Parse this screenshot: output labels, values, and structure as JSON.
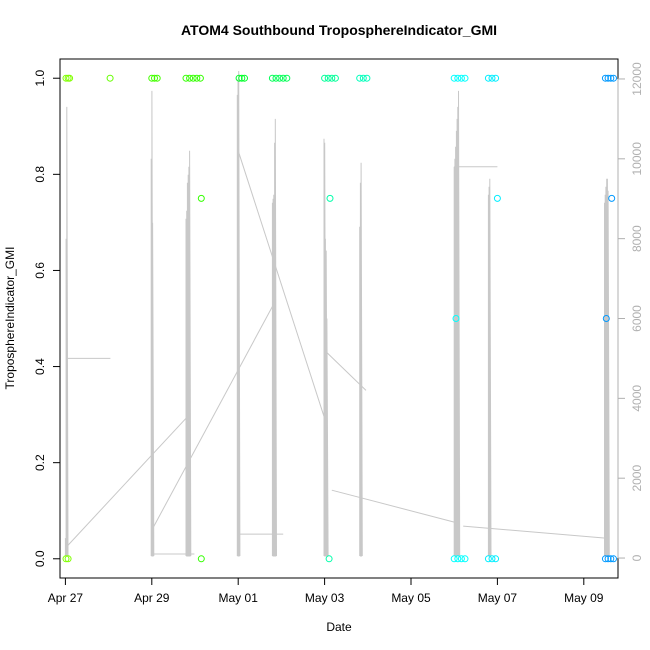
{
  "chart_data": {
    "type": "scatter",
    "title": "ATOM4 Southbound TroposphereIndicator_GMI",
    "xlabel": "Date",
    "ylabel": "TroposphereIndicator_GMI",
    "x_axis": {
      "type": "date",
      "range": [
        "2023-04-26T21:00",
        "2023-05-09T19:00"
      ],
      "ticks": [
        {
          "value": "2023-04-27",
          "label": "Apr 27"
        },
        {
          "value": "2023-04-29",
          "label": "Apr 29"
        },
        {
          "value": "2023-05-01",
          "label": "May 01"
        },
        {
          "value": "2023-05-03",
          "label": "May 03"
        },
        {
          "value": "2023-05-05",
          "label": "May 05"
        },
        {
          "value": "2023-05-07",
          "label": "May 07"
        },
        {
          "value": "2023-05-09",
          "label": "May 09"
        }
      ]
    },
    "y_axis_left": {
      "range": [
        -0.04,
        1.04
      ],
      "ticks": [
        {
          "value": 0.0,
          "label": "0.0"
        },
        {
          "value": 0.2,
          "label": "0.2"
        },
        {
          "value": 0.4,
          "label": "0.4"
        },
        {
          "value": 0.6,
          "label": "0.6"
        },
        {
          "value": 0.8,
          "label": "0.8"
        },
        {
          "value": 1.0,
          "label": "1.0"
        }
      ]
    },
    "y_axis_right": {
      "range": [
        -500,
        12500
      ],
      "color": "#b0b0b0",
      "ticks": [
        {
          "value": 0,
          "label": "0"
        },
        {
          "value": 2000,
          "label": "2000"
        },
        {
          "value": 4000,
          "label": "4000"
        },
        {
          "value": 6000,
          "label": "6000"
        },
        {
          "value": 8000,
          "label": "8000"
        },
        {
          "value": 10000,
          "label": "10000"
        },
        {
          "value": 12000,
          "label": "12000"
        }
      ]
    },
    "grid": false,
    "indicator_series": {
      "marker": "open-circle",
      "color_scale": "green-to-blue by time",
      "points": [
        {
          "x": "2023-04-27T00:20",
          "y": 1.0,
          "color": "#80ff00"
        },
        {
          "x": "2023-04-27T01:30",
          "y": 1.0,
          "color": "#80ff00"
        },
        {
          "x": "2023-04-27T02:20",
          "y": 1.0,
          "color": "#80ff00"
        },
        {
          "x": "2023-04-27T00:20",
          "y": 0.0,
          "color": "#80ff00"
        },
        {
          "x": "2023-04-27T01:30",
          "y": 0.0,
          "color": "#80ff00"
        },
        {
          "x": "2023-04-28T00:50",
          "y": 1.0,
          "color": "#66ff00"
        },
        {
          "x": "2023-04-29T00:00",
          "y": 1.0,
          "color": "#44ff00"
        },
        {
          "x": "2023-04-29T01:30",
          "y": 1.0,
          "color": "#44ff00"
        },
        {
          "x": "2023-04-29T03:00",
          "y": 1.0,
          "color": "#44ff00"
        },
        {
          "x": "2023-04-29T19:00",
          "y": 1.0,
          "color": "#33ff00"
        },
        {
          "x": "2023-04-29T21:00",
          "y": 1.0,
          "color": "#33ff00"
        },
        {
          "x": "2023-04-29T23:00",
          "y": 1.0,
          "color": "#33ff00"
        },
        {
          "x": "2023-04-30T01:00",
          "y": 1.0,
          "color": "#33ff00"
        },
        {
          "x": "2023-04-30T03:00",
          "y": 1.0,
          "color": "#33ff00"
        },
        {
          "x": "2023-04-30T03:30",
          "y": 0.75,
          "color": "#33ff00"
        },
        {
          "x": "2023-04-30T03:30",
          "y": 0.0,
          "color": "#33ff00"
        },
        {
          "x": "2023-05-01T00:30",
          "y": 1.0,
          "color": "#00ff2a"
        },
        {
          "x": "2023-05-01T02:00",
          "y": 1.0,
          "color": "#00ff2a"
        },
        {
          "x": "2023-05-01T03:30",
          "y": 1.0,
          "color": "#00ff2a"
        },
        {
          "x": "2023-05-01T19:00",
          "y": 1.0,
          "color": "#00ff55"
        },
        {
          "x": "2023-05-01T21:00",
          "y": 1.0,
          "color": "#00ff55"
        },
        {
          "x": "2023-05-01T23:00",
          "y": 1.0,
          "color": "#00ff55"
        },
        {
          "x": "2023-05-02T01:00",
          "y": 1.0,
          "color": "#00ff55"
        },
        {
          "x": "2023-05-02T03:00",
          "y": 1.0,
          "color": "#00ff55"
        },
        {
          "x": "2023-05-03T00:00",
          "y": 1.0,
          "color": "#00ff99"
        },
        {
          "x": "2023-05-03T02:00",
          "y": 1.0,
          "color": "#00ff99"
        },
        {
          "x": "2023-05-03T04:00",
          "y": 1.0,
          "color": "#00ff99"
        },
        {
          "x": "2023-05-03T06:00",
          "y": 1.0,
          "color": "#00ff99"
        },
        {
          "x": "2023-05-03T03:00",
          "y": 0.75,
          "color": "#00ffaa"
        },
        {
          "x": "2023-05-03T02:30",
          "y": 0.0,
          "color": "#00ffaa"
        },
        {
          "x": "2023-05-03T19:30",
          "y": 1.0,
          "color": "#00ffbb"
        },
        {
          "x": "2023-05-03T21:30",
          "y": 1.0,
          "color": "#00ffbb"
        },
        {
          "x": "2023-05-03T23:30",
          "y": 1.0,
          "color": "#00ffbb"
        },
        {
          "x": "2023-05-06T00:00",
          "y": 1.0,
          "color": "#00ffff"
        },
        {
          "x": "2023-05-06T02:00",
          "y": 1.0,
          "color": "#00ffff"
        },
        {
          "x": "2023-05-06T04:00",
          "y": 1.0,
          "color": "#00ffff"
        },
        {
          "x": "2023-05-06T06:00",
          "y": 1.0,
          "color": "#00ffff"
        },
        {
          "x": "2023-05-06T01:00",
          "y": 0.5,
          "color": "#00ffff"
        },
        {
          "x": "2023-05-06T00:00",
          "y": 0.0,
          "color": "#00ffff"
        },
        {
          "x": "2023-05-06T02:00",
          "y": 0.0,
          "color": "#00ffff"
        },
        {
          "x": "2023-05-06T04:00",
          "y": 0.0,
          "color": "#00ffff"
        },
        {
          "x": "2023-05-06T06:00",
          "y": 0.0,
          "color": "#00ffff"
        },
        {
          "x": "2023-05-06T19:00",
          "y": 1.0,
          "color": "#00eeff"
        },
        {
          "x": "2023-05-06T21:00",
          "y": 1.0,
          "color": "#00eeff"
        },
        {
          "x": "2023-05-06T23:00",
          "y": 1.0,
          "color": "#00eeff"
        },
        {
          "x": "2023-05-07T00:00",
          "y": 0.75,
          "color": "#00eeff"
        },
        {
          "x": "2023-05-06T19:00",
          "y": 0.0,
          "color": "#00eeff"
        },
        {
          "x": "2023-05-06T21:00",
          "y": 0.0,
          "color": "#00eeff"
        },
        {
          "x": "2023-05-06T23:00",
          "y": 0.0,
          "color": "#00eeff"
        },
        {
          "x": "2023-05-09T12:00",
          "y": 1.0,
          "color": "#0099ff"
        },
        {
          "x": "2023-05-09T13:30",
          "y": 1.0,
          "color": "#0099ff"
        },
        {
          "x": "2023-05-09T15:00",
          "y": 1.0,
          "color": "#0099ff"
        },
        {
          "x": "2023-05-09T16:30",
          "y": 1.0,
          "color": "#0099ff"
        },
        {
          "x": "2023-05-09T12:30",
          "y": 0.5,
          "color": "#0099ff"
        },
        {
          "x": "2023-05-09T15:30",
          "y": 0.75,
          "color": "#0099ff"
        },
        {
          "x": "2023-05-09T12:00",
          "y": 0.0,
          "color": "#0099ff"
        },
        {
          "x": "2023-05-09T13:30",
          "y": 0.0,
          "color": "#0099ff"
        },
        {
          "x": "2023-05-09T15:00",
          "y": 0.0,
          "color": "#0099ff"
        },
        {
          "x": "2023-05-09T16:30",
          "y": 0.0,
          "color": "#0099ff"
        }
      ]
    },
    "spike_series": {
      "axis": "right",
      "color": "#c8c8c8",
      "bursts": [
        {
          "start": "2023-04-27T00:00",
          "peaks": [
            500,
            8000,
            11300
          ]
        },
        {
          "start": "2023-04-28T23:40",
          "peaks": [
            10000,
            11700,
            8400
          ]
        },
        {
          "start": "2023-04-29T19:00",
          "peaks": [
            8500,
            8700,
            9400,
            9600,
            9800,
            10200
          ]
        },
        {
          "start": "2023-04-30T23:30",
          "peaks": [
            11600,
            12000,
            12200
          ]
        },
        {
          "start": "2023-05-01T19:00",
          "peaks": [
            8900,
            9000,
            9100,
            10400,
            11000
          ]
        },
        {
          "start": "2023-05-02T23:40",
          "peaks": [
            10500,
            10400,
            8000,
            7700,
            6000
          ]
        },
        {
          "start": "2023-05-03T19:30",
          "peaks": [
            8300,
            9400,
            9900
          ]
        },
        {
          "start": "2023-05-06T00:00",
          "peaks": [
            9800,
            10000,
            10300,
            10700,
            11000,
            11300,
            11700
          ]
        },
        {
          "start": "2023-05-06T19:00",
          "peaks": [
            9100,
            9300,
            9500
          ]
        },
        {
          "start": "2023-05-09T11:30",
          "peaks": [
            8900,
            9100,
            9300,
            9500,
            9500,
            9200
          ]
        }
      ],
      "connectors": [
        {
          "x1": "2023-04-27T00:30",
          "y1": 5000,
          "x2": "2023-04-28T01:00",
          "y2": 5000
        },
        {
          "x1": "2023-04-27T01:00",
          "y1": 300,
          "x2": "2023-04-29T19:00",
          "y2": 3500
        },
        {
          "x1": "2023-04-28T23:40",
          "y1": 100,
          "x2": "2023-04-29T23:40",
          "y2": 100
        },
        {
          "x1": "2023-04-29T00:00",
          "y1": 700,
          "x2": "2023-05-01T19:00",
          "y2": 6300
        },
        {
          "x1": "2023-04-30T23:30",
          "y1": 600,
          "x2": "2023-05-02T01:00",
          "y2": 600
        },
        {
          "x1": "2023-05-01T00:00",
          "y1": 10200,
          "x2": "2023-05-03T00:00",
          "y2": 3500
        },
        {
          "x1": "2023-05-03T00:00",
          "y1": 5200,
          "x2": "2023-05-03T23:00",
          "y2": 4200
        },
        {
          "x1": "2023-05-03T04:00",
          "y1": 1700,
          "x2": "2023-05-06T00:00",
          "y2": 900
        },
        {
          "x1": "2023-05-06T00:00",
          "y1": 9800,
          "x2": "2023-05-07T00:00",
          "y2": 9800
        },
        {
          "x1": "2023-05-06T05:00",
          "y1": 800,
          "x2": "2023-05-09T12:00",
          "y2": 500
        }
      ]
    }
  }
}
